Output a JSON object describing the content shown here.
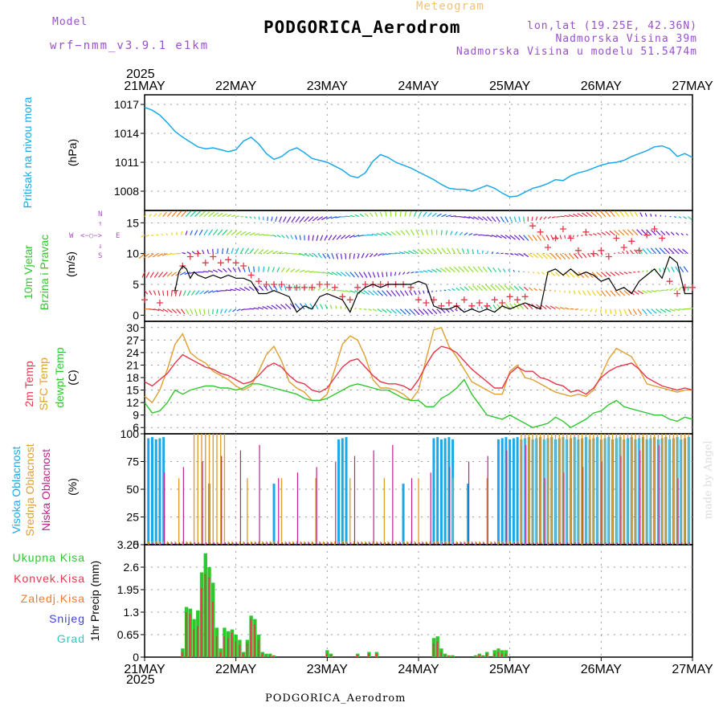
{
  "header": {
    "model_label": "Model",
    "model_name": "wrf−nmm_v3.9.1  e1km",
    "meteogram_label": "Meteogram",
    "station": "PODGORICA_Aerodrom",
    "lonlat": "lon,lat (19.25E, 42.36N)",
    "elevation": "Nadmorska Visina 39m",
    "model_elevation": "Nadmorska Visina u modelu 51.5474m",
    "year_top": "2025",
    "year_bottom": "2025",
    "footer_station": "PODGORICA_Aerodrom",
    "credit": "made by Angel"
  },
  "colors": {
    "pressure": "#1ba8e8",
    "wind_speed": "#000000",
    "gust": "#e8364a",
    "temp2m": "#e8364a",
    "sfc_temp": "#e0a030",
    "dewpt": "#2ec82e",
    "cloud_high": "#1ba8e8",
    "cloud_mid": "#e0a030",
    "cloud_low": "#c0208a",
    "precip_total": "#2ec82e",
    "precip_conv": "#e8364a",
    "grid": "#999999"
  },
  "side_labels": {
    "pressure": [
      "Pritisak na nivou mora",
      "(hPa)"
    ],
    "wind": [
      "10m Vjetar",
      "Brzina i Pravac",
      "(m/s)"
    ],
    "compass": {
      "n": "N",
      "s": "S",
      "w": "W",
      "e": "E"
    },
    "temp": [
      "2m Temp",
      "SFC Temp",
      "dewpt Temp",
      "(C)"
    ],
    "cloud": [
      "Visoka Oblacnost",
      "Srednja Oblacnost",
      "Niska Oblacnost",
      "(%)"
    ],
    "precip_unit": "1hr Precip (mm)",
    "precip_legend": [
      "Ukupna Kisa",
      "Konvek.Kisa",
      "Zaledj.Kisa",
      "Snijeg",
      "Grad"
    ]
  },
  "chart_data": {
    "type": "line",
    "x_ticks": [
      "21MAY",
      "22MAY",
      "23MAY",
      "24MAY",
      "25MAY",
      "26MAY",
      "27MAY"
    ],
    "x_range_hours": [
      0,
      144
    ],
    "panels": {
      "pressure": {
        "ylim": [
          1006,
          1018
        ],
        "yticks": [
          "1017",
          "1014",
          "1011",
          "1008"
        ],
        "x_hours": [
          0,
          2,
          4,
          6,
          8,
          10,
          12,
          14,
          16,
          18,
          20,
          22,
          24,
          26,
          28,
          30,
          32,
          34,
          36,
          38,
          40,
          42,
          44,
          46,
          48,
          50,
          52,
          54,
          56,
          58,
          60,
          62,
          64,
          66,
          68,
          70,
          72,
          74,
          76,
          78,
          80,
          82,
          84,
          86,
          88,
          90,
          92,
          94,
          96,
          98,
          100,
          102,
          104,
          106,
          108,
          110,
          112,
          114,
          116,
          118,
          120,
          122,
          124,
          126,
          128,
          130,
          132,
          134,
          136,
          138,
          140,
          142,
          144
        ],
        "values": [
          1016.7,
          1016.4,
          1015.9,
          1015.1,
          1014.2,
          1013.6,
          1013.1,
          1012.6,
          1012.4,
          1012.5,
          1012.3,
          1012.1,
          1012.3,
          1013.2,
          1013.6,
          1012.9,
          1011.9,
          1011.3,
          1011.6,
          1012.2,
          1012.5,
          1012.0,
          1011.4,
          1011.2,
          1011.0,
          1010.6,
          1010.2,
          1009.6,
          1009.4,
          1009.9,
          1011.1,
          1011.8,
          1011.5,
          1011.0,
          1010.7,
          1010.4,
          1010.0,
          1009.6,
          1009.2,
          1008.7,
          1008.3,
          1008.2,
          1008.2,
          1008.0,
          1008.3,
          1008.6,
          1008.3,
          1007.8,
          1007.4,
          1007.5,
          1007.9,
          1008.3,
          1008.5,
          1008.8,
          1009.2,
          1009.1,
          1009.6,
          1009.9,
          1010.1,
          1010.4,
          1010.7,
          1010.9,
          1011.0,
          1011.2,
          1011.6,
          1011.9,
          1012.2,
          1012.6,
          1012.7,
          1012.4,
          1011.6,
          1011.9,
          1011.5
        ]
      },
      "wind": {
        "ylim": [
          -1,
          17
        ],
        "yticks": [
          "15",
          "10",
          "5",
          "0"
        ],
        "speed_x_hours": [
          8,
          9,
          10,
          11,
          12,
          13,
          14,
          16,
          18,
          20,
          22,
          24,
          26,
          28,
          30,
          32,
          34,
          36,
          38,
          40,
          42,
          44,
          46,
          48,
          50,
          52,
          54,
          56,
          58,
          60,
          62,
          64,
          66,
          68,
          70,
          72,
          74,
          76,
          78,
          80,
          82,
          84,
          86,
          88,
          90,
          92,
          94,
          96,
          98,
          100,
          102,
          104,
          106,
          108,
          110,
          112,
          114,
          116,
          118,
          120,
          122,
          124,
          126,
          128,
          130,
          132,
          134,
          136,
          138,
          140,
          142,
          144
        ],
        "speed": [
          4.0,
          7.0,
          8.0,
          7.5,
          6.0,
          7.0,
          6.5,
          6.0,
          6.5,
          6.0,
          6.5,
          6.0,
          6.0,
          5.5,
          3.5,
          3.5,
          4.0,
          3.5,
          3.0,
          0.5,
          1.5,
          1.0,
          3.0,
          3.5,
          3.0,
          2.5,
          0.5,
          3.5,
          4.5,
          5.0,
          4.5,
          5.0,
          5.0,
          5.0,
          5.0,
          5.5,
          5.0,
          1.5,
          1.0,
          1.0,
          1.5,
          0.5,
          1.0,
          0.5,
          1.0,
          0.5,
          1.5,
          1.0,
          1.5,
          2.0,
          1.5,
          1.0,
          7.0,
          7.5,
          6.5,
          7.5,
          6.5,
          7.0,
          6.5,
          5.5,
          6.0,
          4.0,
          4.5,
          3.5,
          5.5,
          6.5,
          7.5,
          6.0,
          9.5,
          8.5,
          3.5,
          3.5
        ],
        "gust_note": "10m gust",
        "gust_x_hours": [
          0,
          4,
          8,
          10,
          12,
          14,
          16,
          18,
          20,
          22,
          24,
          26,
          28,
          30,
          32,
          34,
          36,
          38,
          40,
          42,
          44,
          46,
          48,
          50,
          52,
          54,
          56,
          58,
          60,
          62,
          64,
          66,
          68,
          70,
          72,
          74,
          76,
          78,
          80,
          82,
          84,
          86,
          88,
          90,
          92,
          94,
          96,
          98,
          100,
          102,
          104,
          106,
          108,
          110,
          112,
          114,
          116,
          118,
          120,
          122,
          124,
          126,
          128,
          130,
          132,
          134,
          136,
          138,
          140,
          142,
          144
        ],
        "gust": [
          2.5,
          2.0,
          4.0,
          8.0,
          9.5,
          10.0,
          8.5,
          9.5,
          8.5,
          9.0,
          8.5,
          8.0,
          6.5,
          5.5,
          5.0,
          5.0,
          5.0,
          4.5,
          4.5,
          4.5,
          4.5,
          5.0,
          5.0,
          4.5,
          3.0,
          2.5,
          4.5,
          5.0,
          5.0,
          5.0,
          5.0,
          5.0,
          5.0,
          4.5,
          2.5,
          2.0,
          2.5,
          1.5,
          2.0,
          1.5,
          2.5,
          1.5,
          2.0,
          1.5,
          2.5,
          2.0,
          3.0,
          2.5,
          3.0,
          14.5,
          13.5,
          11.0,
          12.5,
          14.0,
          12.5,
          10.5,
          13.5,
          10.0,
          10.5,
          9.5,
          12.5,
          11.0,
          12.0,
          10.5,
          13.0,
          14.0,
          12.5,
          5.5,
          3.5,
          4.5,
          4.5
        ]
      },
      "temperature": {
        "ylim": [
          4.5,
          31.5
        ],
        "yticks": [
          "30",
          "27",
          "24",
          "21",
          "18",
          "15",
          "12",
          "9",
          "6"
        ],
        "x_hours": [
          0,
          2,
          4,
          6,
          8,
          10,
          12,
          14,
          16,
          18,
          20,
          22,
          24,
          26,
          28,
          30,
          32,
          34,
          36,
          38,
          40,
          42,
          44,
          46,
          48,
          50,
          52,
          54,
          56,
          58,
          60,
          62,
          64,
          66,
          68,
          70,
          72,
          74,
          76,
          78,
          80,
          82,
          84,
          86,
          88,
          90,
          92,
          94,
          96,
          98,
          100,
          102,
          104,
          106,
          108,
          110,
          112,
          114,
          116,
          118,
          120,
          122,
          124,
          126,
          128,
          130,
          132,
          134,
          136,
          138,
          140,
          142,
          144
        ],
        "temp2m": [
          17.0,
          16.0,
          17.5,
          19.0,
          21.5,
          23.5,
          22.5,
          21.5,
          20.5,
          20.0,
          19.0,
          18.5,
          17.5,
          16.5,
          17.0,
          18.5,
          20.5,
          21.5,
          20.5,
          18.5,
          17.0,
          16.5,
          15.0,
          14.5,
          15.5,
          18.0,
          20.5,
          22.0,
          22.5,
          20.5,
          18.5,
          17.0,
          16.5,
          16.5,
          16.0,
          15.0,
          17.5,
          21.0,
          24.0,
          25.5,
          25.0,
          24.0,
          22.0,
          20.0,
          18.5,
          17.0,
          15.5,
          15.5,
          19.0,
          20.5,
          19.5,
          19.5,
          18.0,
          17.5,
          16.5,
          16.0,
          14.5,
          15.0,
          14.0,
          15.5,
          18.0,
          19.5,
          20.5,
          21.0,
          21.5,
          20.0,
          18.0,
          17.0,
          16.0,
          15.5,
          15.0,
          15.5,
          15.0
        ],
        "sfc_temp": [
          13.5,
          12.0,
          15.0,
          20.0,
          26.0,
          28.5,
          24.0,
          22.5,
          21.5,
          19.5,
          18.5,
          17.5,
          16.0,
          15.0,
          16.0,
          19.5,
          23.5,
          25.5,
          22.0,
          17.0,
          15.5,
          14.5,
          12.5,
          12.5,
          14.0,
          20.0,
          26.0,
          28.0,
          27.0,
          23.0,
          17.5,
          15.5,
          15.5,
          15.0,
          14.0,
          12.5,
          15.0,
          22.5,
          29.5,
          30.0,
          25.5,
          23.0,
          20.0,
          17.0,
          16.0,
          15.0,
          14.0,
          14.0,
          19.5,
          21.0,
          18.0,
          17.5,
          16.5,
          15.5,
          14.5,
          14.0,
          13.5,
          14.0,
          13.5,
          15.0,
          18.5,
          22.5,
          25.0,
          24.0,
          23.0,
          20.0,
          16.5,
          16.0,
          15.5,
          15.0,
          14.5,
          15.0,
          15.0
        ],
        "dewpt": [
          12.0,
          9.5,
          10.0,
          12.0,
          15.0,
          14.0,
          15.0,
          15.5,
          16.0,
          16.0,
          15.5,
          15.5,
          15.0,
          15.5,
          16.5,
          16.5,
          16.0,
          15.5,
          15.0,
          14.5,
          14.0,
          13.0,
          12.5,
          12.5,
          13.0,
          14.0,
          15.0,
          16.0,
          16.5,
          16.0,
          15.5,
          15.0,
          15.0,
          14.0,
          13.0,
          12.5,
          12.5,
          11.0,
          11.0,
          13.0,
          14.0,
          15.5,
          17.5,
          14.0,
          11.5,
          9.0,
          8.5,
          8.0,
          9.0,
          8.0,
          7.0,
          6.0,
          6.5,
          7.0,
          8.5,
          7.5,
          6.0,
          7.0,
          8.0,
          9.5,
          10.0,
          11.5,
          12.5,
          11.0,
          10.5,
          10.0,
          9.5,
          9.0,
          9.0,
          8.0,
          7.5,
          8.5,
          8.0
        ]
      },
      "cloud": {
        "ylim": [
          0,
          100
        ],
        "yticks": [
          "100",
          "75",
          "50",
          "25",
          "0"
        ]
      },
      "precip": {
        "ylim": [
          0,
          3.25
        ],
        "yticks": [
          "3.25",
          "2.6",
          "1.95",
          "1.3",
          "0.65",
          "0"
        ],
        "x_hours": [
          10,
          11,
          12,
          13,
          14,
          15,
          16,
          17,
          18,
          19,
          20,
          21,
          22,
          23,
          24,
          25,
          26,
          27,
          28,
          29,
          30,
          31,
          32,
          33,
          34,
          48,
          49,
          56,
          59,
          61,
          76,
          77,
          78,
          79,
          80,
          81,
          87,
          88,
          89,
          90,
          92,
          93,
          94,
          95
        ],
        "total": [
          0.25,
          1.45,
          1.4,
          1.1,
          1.35,
          2.45,
          3.0,
          2.6,
          2.15,
          0.85,
          0.25,
          0.85,
          0.75,
          0.8,
          0.65,
          0.5,
          0.15,
          0.5,
          1.2,
          1.1,
          0.65,
          0.15,
          0.1,
          0.1,
          0.05,
          0.2,
          0.1,
          0.1,
          0.15,
          0.15,
          0.55,
          0.6,
          0.25,
          0.1,
          0.05,
          0.05,
          0.05,
          0.1,
          0.05,
          0.15,
          0.2,
          0.25,
          0.2,
          0.2
        ],
        "convective": [
          0.15,
          1.3,
          1.25,
          0.8,
          0.9,
          2.0,
          2.4,
          2.3,
          1.6,
          0.6,
          0.15,
          0.6,
          0.55,
          0.7,
          0.45,
          0.35,
          0.1,
          0.4,
          1.1,
          0.95,
          0.5,
          0.1,
          0.05,
          0.05,
          0.05,
          0.1,
          0.05,
          0.05,
          0.1,
          0.1,
          0.4,
          0.45,
          0.15,
          0.05,
          0.05,
          0.05,
          0.05,
          0.05,
          0.05,
          0.1,
          0.1,
          0.15,
          0.1,
          0.1
        ]
      }
    }
  }
}
